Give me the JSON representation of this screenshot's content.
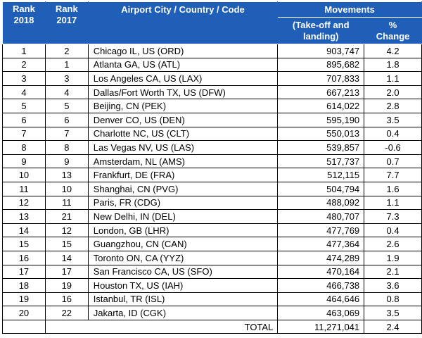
{
  "headers": {
    "rank_2018": "Rank 2018",
    "rank_2017": "Rank 2017",
    "airport": "Airport City / Country / Code",
    "movements": "Movements",
    "takeoff_landing": "(Take-off and landing)",
    "pct_change": "% Change"
  },
  "rows": [
    {
      "r18": "1",
      "r17": "2",
      "airport": "Chicago IL, US (ORD)",
      "movements": "903,747",
      "change": "4.2"
    },
    {
      "r18": "2",
      "r17": "1",
      "airport": "Atlanta GA, US (ATL)",
      "movements": "895,682",
      "change": "1.8"
    },
    {
      "r18": "3",
      "r17": "3",
      "airport": "Los Angeles CA, US (LAX)",
      "movements": "707,833",
      "change": "1.1"
    },
    {
      "r18": "4",
      "r17": "4",
      "airport": "Dallas/Fort Worth TX, US (DFW)",
      "movements": "667,213",
      "change": "2.0"
    },
    {
      "r18": "5",
      "r17": "5",
      "airport": "Beijing, CN (PEK)",
      "movements": "614,022",
      "change": "2.8"
    },
    {
      "r18": "6",
      "r17": "6",
      "airport": "Denver CO, US (DEN)",
      "movements": "595,190",
      "change": "3.5"
    },
    {
      "r18": "7",
      "r17": "7",
      "airport": "Charlotte NC, US (CLT)",
      "movements": "550,013",
      "change": "0.4"
    },
    {
      "r18": "8",
      "r17": "8",
      "airport": "Las Vegas NV, US (LAS)",
      "movements": "539,857",
      "change": "-0.6"
    },
    {
      "r18": "9",
      "r17": "9",
      "airport": "Amsterdam, NL (AMS)",
      "movements": "517,737",
      "change": "0.7"
    },
    {
      "r18": "10",
      "r17": "13",
      "airport": "Frankfurt, DE (FRA)",
      "movements": "512,115",
      "change": "7.7"
    },
    {
      "r18": "11",
      "r17": "10",
      "airport": "Shanghai, CN (PVG)",
      "movements": "504,794",
      "change": "1.6"
    },
    {
      "r18": "12",
      "r17": "11",
      "airport": "Paris, FR (CDG)",
      "movements": "488,092",
      "change": "1.1"
    },
    {
      "r18": "13",
      "r17": "21",
      "airport": "New Delhi, IN (DEL)",
      "movements": "480,707",
      "change": "7.3"
    },
    {
      "r18": "14",
      "r17": "12",
      "airport": "London, GB (LHR)",
      "movements": "477,769",
      "change": "0.4"
    },
    {
      "r18": "15",
      "r17": "15",
      "airport": "Guangzhou, CN (CAN)",
      "movements": "477,364",
      "change": "2.6"
    },
    {
      "r18": "16",
      "r17": "14",
      "airport": "Toronto ON, CA (YYZ)",
      "movements": "474,289",
      "change": "1.9"
    },
    {
      "r18": "17",
      "r17": "17",
      "airport": "San Francisco CA, US (SFO)",
      "movements": "470,164",
      "change": "2.1"
    },
    {
      "r18": "18",
      "r17": "19",
      "airport": "Houston TX, US (IAH)",
      "movements": "466,738",
      "change": "3.6"
    },
    {
      "r18": "19",
      "r17": "16",
      "airport": "Istanbul, TR (ISL)",
      "movements": "464,646",
      "change": "0.8"
    },
    {
      "r18": "20",
      "r17": "22",
      "airport": "Jakarta, ID (CGK)",
      "movements": "463,069",
      "change": "3.5"
    }
  ],
  "total": {
    "label": "TOTAL",
    "movements": "11,271,041",
    "change": "2.4"
  },
  "colors": {
    "header_bg": "#1f5fb8",
    "header_text": "#ffffff"
  }
}
